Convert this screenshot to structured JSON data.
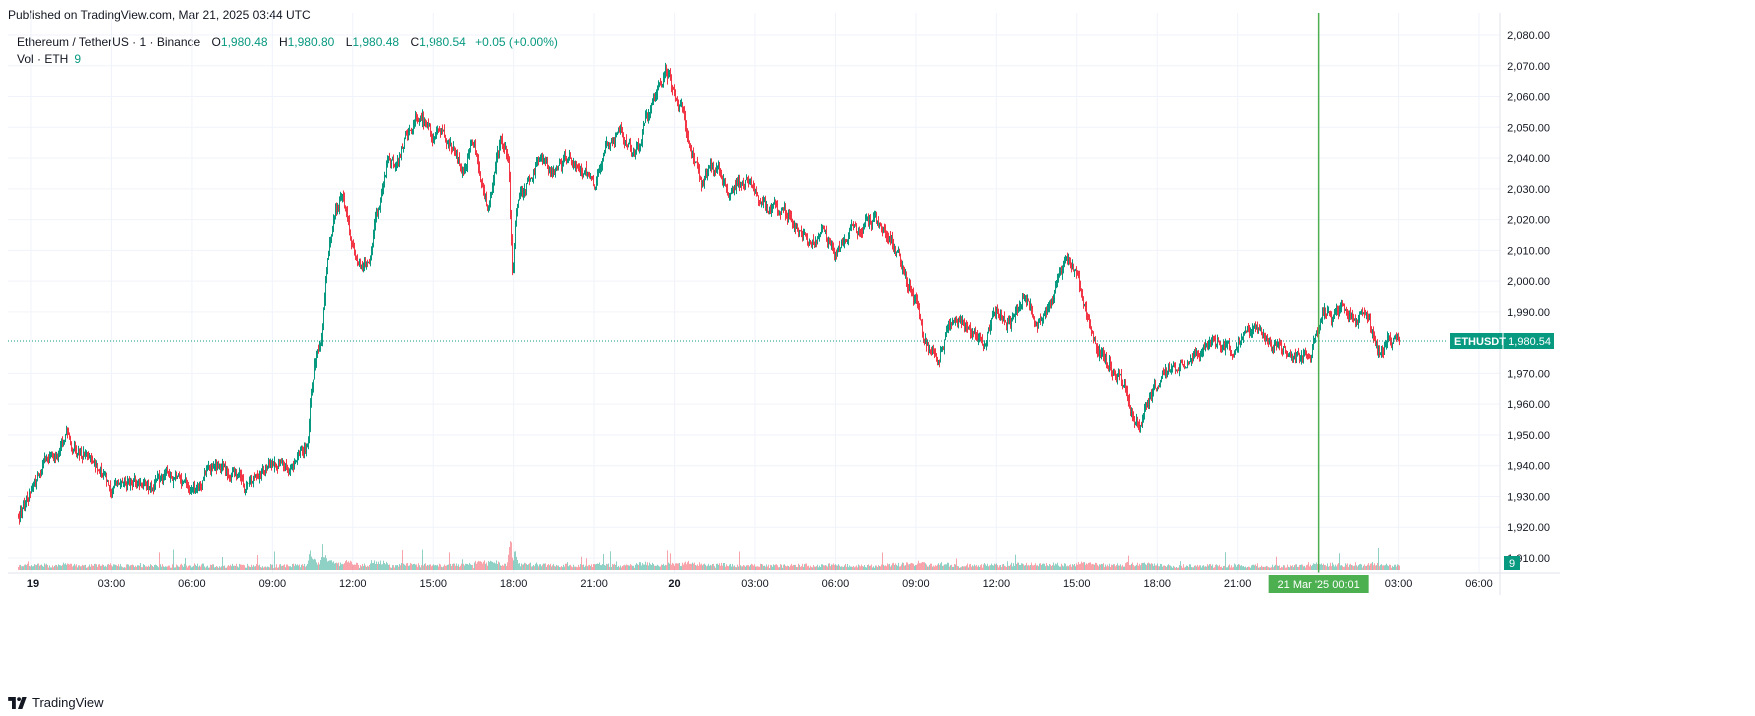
{
  "header": {
    "published": "Published on TradingView.com, Mar 21, 2025 03:44 UTC"
  },
  "legend": {
    "symbol": "Ethereum / TetherUS · 1 · Binance",
    "open_label": "O",
    "open": "1,980.48",
    "high_label": "H",
    "high": "1,980.80",
    "low_label": "L",
    "low": "1,980.48",
    "close_label": "C",
    "close": "1,980.54",
    "change": "+0.05 (+0.00%)",
    "volume_label": "Vol · ETH",
    "volume": "9"
  },
  "price_tag": {
    "symbol": "ETHUSDT",
    "price": "1,980.54"
  },
  "volume_tag": "9",
  "crosshair_time_label": "21 Mar '25   00:01",
  "footer": {
    "brand": "TradingView",
    "logo_icon": "tradingview-logo-icon"
  },
  "colors": {
    "up": "#089981",
    "down": "#f23645",
    "crosshair": "#4caf50",
    "grid": "#f0f3fa",
    "text": "#131722"
  },
  "chart_data": {
    "type": "candlestick",
    "title": "Ethereum / TetherUS · 1 · Binance",
    "ylim": [
      1905,
      2085
    ],
    "y_ticks": [
      "2,080.00",
      "2,070.00",
      "2,060.00",
      "2,050.00",
      "2,040.00",
      "2,030.00",
      "2,020.00",
      "2,010.00",
      "2,000.00",
      "1,990.00",
      "1,970.00",
      "1,960.00",
      "1,950.00",
      "1,940.00",
      "1,930.00",
      "1,920.00",
      "1,910.00"
    ],
    "y_tick_values": [
      2080,
      2070,
      2060,
      2050,
      2040,
      2030,
      2020,
      2010,
      2000,
      1990,
      1970,
      1960,
      1950,
      1940,
      1930,
      1920,
      1910
    ],
    "x_ticks": [
      "19",
      "03:00",
      "06:00",
      "09:00",
      "12:00",
      "15:00",
      "18:00",
      "21:00",
      "20",
      "03:00",
      "06:00",
      "09:00",
      "12:00",
      "15:00",
      "18:00",
      "21:00",
      "03:00",
      "06:00"
    ],
    "x_tick_hours": [
      0,
      3,
      6,
      9,
      12,
      15,
      18,
      21,
      24,
      27,
      30,
      33,
      36,
      39,
      42,
      45,
      51,
      54
    ],
    "bold_ticks": [
      "19",
      "20"
    ],
    "time_range_hours": [
      -0.5,
      51.0
    ],
    "current_price": 1980.54,
    "crosshair_hour": 48.02,
    "path_hours": [
      -0.5,
      0.5,
      1.0,
      1.3,
      1.7,
      2.2,
      2.7,
      3.0,
      3.5,
      4.0,
      4.5,
      5.0,
      5.5,
      6.0,
      6.5,
      7.0,
      7.5,
      8.0,
      8.5,
      9.0,
      9.5,
      10.0,
      10.3,
      10.35,
      10.42,
      10.6,
      10.8,
      11.0,
      11.3,
      11.6,
      11.9,
      12.2,
      12.6,
      13.0,
      13.3,
      13.7,
      14.0,
      14.5,
      15.0,
      15.3,
      15.7,
      16.1,
      16.5,
      17.0,
      17.5,
      17.8,
      17.95,
      18.1,
      18.4,
      19.0,
      19.5,
      20.0,
      20.5,
      21.0,
      21.5,
      22.0,
      22.5,
      23.2,
      23.7,
      24.0,
      24.3,
      24.7,
      25.0,
      25.5,
      26.0,
      26.5,
      27.0,
      27.5,
      28.0,
      28.5,
      29.0,
      29.5,
      30.0,
      30.5,
      31.0,
      31.5,
      32.0,
      32.5,
      33.0,
      33.3,
      33.8,
      34.2,
      34.6,
      35.0,
      35.5,
      36.0,
      36.5,
      37.0,
      37.5,
      38.0,
      38.3,
      38.7,
      39.0,
      39.3,
      39.6,
      40.0,
      40.5,
      40.8,
      41.0,
      41.3,
      41.7,
      42.2,
      42.7,
      43.2,
      43.8,
      44.3,
      44.8,
      45.2,
      45.8,
      46.3,
      46.8,
      47.3,
      47.7,
      48.0,
      48.2,
      48.5,
      48.9,
      49.3,
      49.7,
      50.0,
      50.3,
      50.6,
      51.0
    ],
    "path_prices": [
      1924,
      1940,
      1944,
      1950,
      1944,
      1943,
      1936,
      1932,
      1934,
      1935,
      1932,
      1938,
      1936,
      1932,
      1938,
      1939,
      1938,
      1933,
      1938,
      1941,
      1939,
      1944,
      1946,
      1948,
      1962,
      1975,
      1982,
      2005,
      2022,
      2028,
      2014,
      2004,
      2008,
      2026,
      2038,
      2040,
      2048,
      2055,
      2045,
      2050,
      2042,
      2036,
      2045,
      2024,
      2046,
      2040,
      2000,
      2025,
      2030,
      2042,
      2035,
      2040,
      2036,
      2032,
      2045,
      2049,
      2040,
      2060,
      2068,
      2060,
      2055,
      2040,
      2033,
      2038,
      2030,
      2033,
      2030,
      2022,
      2024,
      2018,
      2012,
      2016,
      2008,
      2015,
      2018,
      2020,
      2014,
      2005,
      1993,
      1980,
      1974,
      1984,
      1988,
      1984,
      1980,
      1990,
      1986,
      1996,
      1986,
      1994,
      2000,
      2007,
      2002,
      1990,
      1982,
      1975,
      1970,
      1965,
      1958,
      1952,
      1962,
      1970,
      1972,
      1975,
      1978,
      1980,
      1978,
      1984,
      1983,
      1980,
      1978,
      1976,
      1978,
      1985,
      1991,
      1986,
      1993,
      1987,
      1990,
      1984,
      1975,
      1981,
      1980.5
    ]
  }
}
